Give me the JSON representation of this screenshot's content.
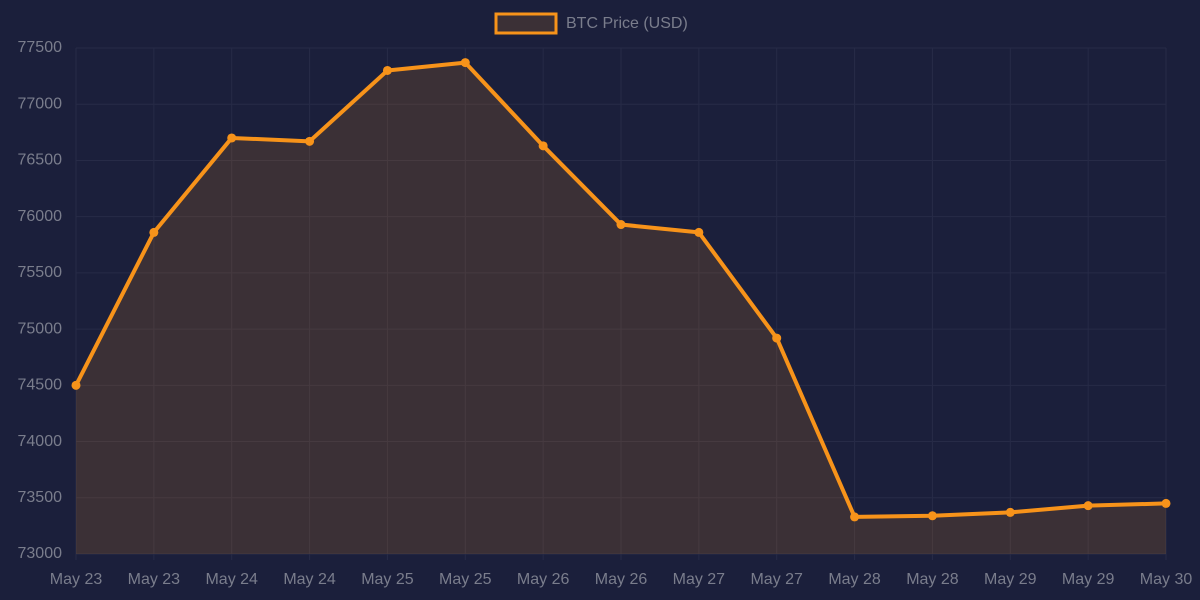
{
  "chart_data": {
    "type": "line",
    "categories": [
      "May 23",
      "May 23",
      "May 24",
      "May 24",
      "May 25",
      "May 25",
      "May 26",
      "May 26",
      "May 27",
      "May 27",
      "May 28",
      "May 28",
      "May 29",
      "May 29",
      "May 30"
    ],
    "series": [
      {
        "name": "BTC Price (USD)",
        "color": "#f7931a",
        "values": [
          74500,
          75860,
          76700,
          76670,
          77300,
          77370,
          76630,
          75930,
          75860,
          74920,
          73330,
          73340,
          73370,
          73430,
          73450
        ]
      }
    ],
    "ylim": [
      73000,
      77500
    ],
    "yticks": [
      73000,
      73500,
      74000,
      74500,
      75000,
      75500,
      76000,
      76500,
      77000,
      77500
    ],
    "grid": true,
    "area": true,
    "legend": "top"
  }
}
